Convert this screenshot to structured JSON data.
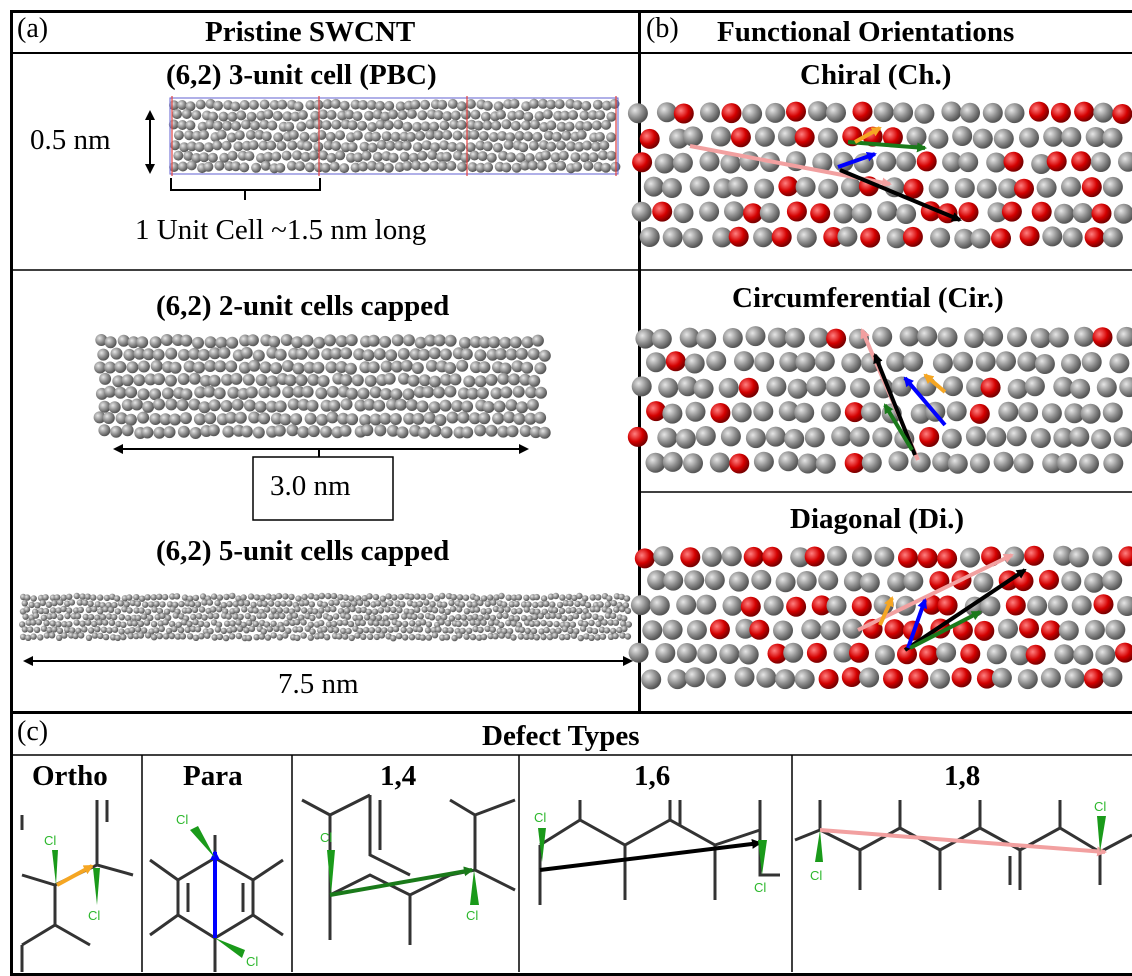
{
  "panel_a": {
    "letter": "(a)",
    "title": "Pristine SWCNT",
    "section1": {
      "title": "(6,2) 3-unit cell (PBC)",
      "diameter_label": "0.5 nm",
      "unit_cell_label": "1 Unit Cell ~1.5 nm long"
    },
    "section2": {
      "title": "(6,2) 2-unit cells capped",
      "length_label": "3.0 nm"
    },
    "section3": {
      "title": "(6,2) 5-unit cells capped",
      "length_label": "7.5 nm"
    }
  },
  "panel_b": {
    "letter": "(b)",
    "title": "Functional Orientations",
    "orientations": [
      {
        "label": "Chiral (Ch.)"
      },
      {
        "label": "Circumferential (Cir.)"
      },
      {
        "label": "Diagonal (Di.)"
      }
    ]
  },
  "panel_c": {
    "letter": "(c)",
    "title": "Defect Types",
    "defects": [
      {
        "label": "Ortho",
        "arrow_color": "#f5a623"
      },
      {
        "label": "Para",
        "arrow_color": "#0000ff"
      },
      {
        "label": "1,4",
        "arrow_color": "#1a7a1a"
      },
      {
        "label": "1,6",
        "arrow_color": "#000000"
      },
      {
        "label": "1,8",
        "arrow_color": "#f2a0a0"
      }
    ],
    "atom_label": "Cl"
  },
  "colors": {
    "carbon": "#8c8c8c",
    "oxygen": "#d40000",
    "chlorine": "#2db82d",
    "cell_line_red": "#e04040",
    "cell_line_blue": "#4040d0"
  }
}
